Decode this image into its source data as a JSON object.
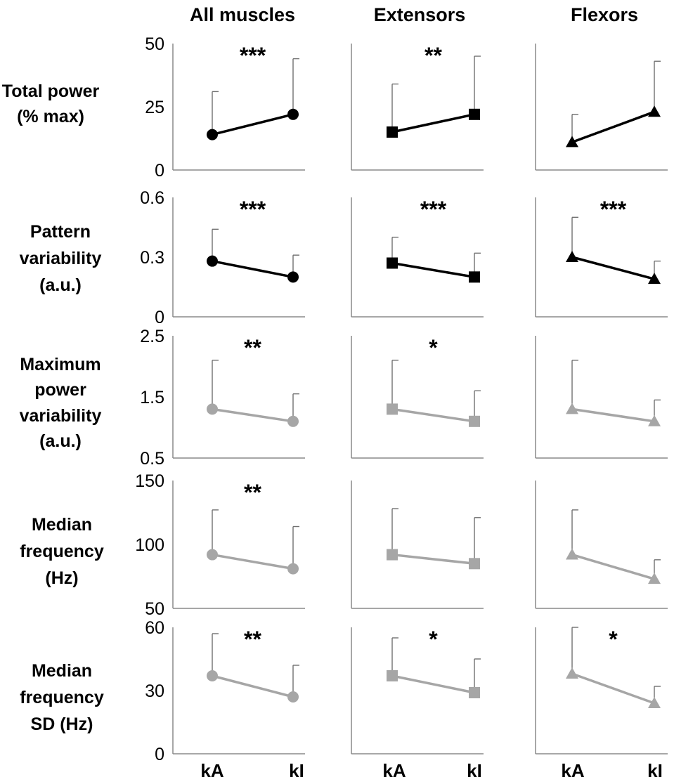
{
  "colors": {
    "dark": "#000000",
    "light": "#a6a6a6",
    "axis": "#8a8a8a",
    "errorbar": "#707070",
    "text": "#000000"
  },
  "figure": {
    "column_titles": [
      "All muscles",
      "Extensors",
      "Flexors"
    ],
    "x_categories": [
      "kA",
      "kI"
    ],
    "row_labels": [
      [
        "Total power",
        "(% max)"
      ],
      [
        "Pattern",
        "variability",
        "(a.u.)"
      ],
      [
        "Maximum",
        "power",
        "variability",
        "(a.u.)"
      ],
      [
        "Median",
        "frequency",
        "(Hz)"
      ],
      [
        "Median",
        "frequency",
        "SD (Hz)"
      ]
    ]
  },
  "chart_data": [
    {
      "type": "line",
      "row": 0,
      "col": 0,
      "group": "All muscles",
      "measure": "Total power (% max)",
      "categories": [
        "kA",
        "kI"
      ],
      "values": [
        14,
        22
      ],
      "error_upper": [
        31,
        44
      ],
      "ylim": [
        0,
        50
      ],
      "yticks": [
        "50",
        "25",
        "0"
      ],
      "significance": "***",
      "marker": "circle",
      "color": "dark"
    },
    {
      "type": "line",
      "row": 0,
      "col": 1,
      "group": "Extensors",
      "measure": "Total power (% max)",
      "categories": [
        "kA",
        "kI"
      ],
      "values": [
        15,
        22
      ],
      "error_upper": [
        34,
        45
      ],
      "ylim": [
        0,
        50
      ],
      "yticks": [],
      "significance": "**",
      "marker": "square",
      "color": "dark"
    },
    {
      "type": "line",
      "row": 0,
      "col": 2,
      "group": "Flexors",
      "measure": "Total power (% max)",
      "categories": [
        "kA",
        "kI"
      ],
      "values": [
        11,
        23
      ],
      "error_upper": [
        22,
        43
      ],
      "ylim": [
        0,
        50
      ],
      "yticks": [],
      "significance": "",
      "marker": "triangle",
      "color": "dark"
    },
    {
      "type": "line",
      "row": 1,
      "col": 0,
      "group": "All muscles",
      "measure": "Pattern variability (a.u.)",
      "categories": [
        "kA",
        "kI"
      ],
      "values": [
        0.28,
        0.2
      ],
      "error_upper": [
        0.44,
        0.31
      ],
      "ylim": [
        0,
        0.6
      ],
      "yticks": [
        "0.6",
        "0.3",
        "0"
      ],
      "significance": "***",
      "marker": "circle",
      "color": "dark"
    },
    {
      "type": "line",
      "row": 1,
      "col": 1,
      "group": "Extensors",
      "measure": "Pattern variability (a.u.)",
      "categories": [
        "kA",
        "kI"
      ],
      "values": [
        0.27,
        0.2
      ],
      "error_upper": [
        0.4,
        0.32
      ],
      "ylim": [
        0,
        0.6
      ],
      "yticks": [],
      "significance": "***",
      "marker": "square",
      "color": "dark"
    },
    {
      "type": "line",
      "row": 1,
      "col": 2,
      "group": "Flexors",
      "measure": "Pattern variability (a.u.)",
      "categories": [
        "kA",
        "kI"
      ],
      "values": [
        0.3,
        0.19
      ],
      "error_upper": [
        0.5,
        0.28
      ],
      "ylim": [
        0,
        0.6
      ],
      "yticks": [],
      "significance": "***",
      "marker": "triangle",
      "color": "dark"
    },
    {
      "type": "line",
      "row": 2,
      "col": 0,
      "group": "All muscles",
      "measure": "Maximum power variability (a.u.)",
      "categories": [
        "kA",
        "kI"
      ],
      "values": [
        1.3,
        1.1
      ],
      "error_upper": [
        2.1,
        1.55
      ],
      "ylim": [
        0.5,
        2.5
      ],
      "yticks": [
        "2.5",
        "1.5",
        "0.5"
      ],
      "significance": "**",
      "marker": "circle",
      "color": "light"
    },
    {
      "type": "line",
      "row": 2,
      "col": 1,
      "group": "Extensors",
      "measure": "Maximum power variability (a.u.)",
      "categories": [
        "kA",
        "kI"
      ],
      "values": [
        1.3,
        1.1
      ],
      "error_upper": [
        2.1,
        1.6
      ],
      "ylim": [
        0.5,
        2.5
      ],
      "yticks": [],
      "significance": "*",
      "marker": "square",
      "color": "light"
    },
    {
      "type": "line",
      "row": 2,
      "col": 2,
      "group": "Flexors",
      "measure": "Maximum power variability (a.u.)",
      "categories": [
        "kA",
        "kI"
      ],
      "values": [
        1.3,
        1.1
      ],
      "error_upper": [
        2.1,
        1.45
      ],
      "ylim": [
        0.5,
        2.5
      ],
      "yticks": [],
      "significance": "",
      "marker": "triangle",
      "color": "light"
    },
    {
      "type": "line",
      "row": 3,
      "col": 0,
      "group": "All muscles",
      "measure": "Median frequency (Hz)",
      "categories": [
        "kA",
        "kI"
      ],
      "values": [
        92,
        81
      ],
      "error_upper": [
        127,
        114
      ],
      "ylim": [
        50,
        150
      ],
      "yticks": [
        "150",
        "100",
        "50"
      ],
      "significance": "**",
      "marker": "circle",
      "color": "light"
    },
    {
      "type": "line",
      "row": 3,
      "col": 1,
      "group": "Extensors",
      "measure": "Median frequency (Hz)",
      "categories": [
        "kA",
        "kI"
      ],
      "values": [
        92,
        85
      ],
      "error_upper": [
        128,
        121
      ],
      "ylim": [
        50,
        150
      ],
      "yticks": [],
      "significance": "",
      "marker": "square",
      "color": "light"
    },
    {
      "type": "line",
      "row": 3,
      "col": 2,
      "group": "Flexors",
      "measure": "Median frequency (Hz)",
      "categories": [
        "kA",
        "kI"
      ],
      "values": [
        92,
        73
      ],
      "error_upper": [
        127,
        88
      ],
      "ylim": [
        50,
        150
      ],
      "yticks": [],
      "significance": "",
      "marker": "triangle",
      "color": "light"
    },
    {
      "type": "line",
      "row": 4,
      "col": 0,
      "group": "All muscles",
      "measure": "Median frequency SD (Hz)",
      "categories": [
        "kA",
        "kI"
      ],
      "values": [
        37,
        27
      ],
      "error_upper": [
        57,
        42
      ],
      "ylim": [
        0,
        60
      ],
      "yticks": [
        "60",
        "30",
        "0"
      ],
      "significance": "**",
      "marker": "circle",
      "color": "light"
    },
    {
      "type": "line",
      "row": 4,
      "col": 1,
      "group": "Extensors",
      "measure": "Median frequency SD (Hz)",
      "categories": [
        "kA",
        "kI"
      ],
      "values": [
        37,
        29
      ],
      "error_upper": [
        55,
        45
      ],
      "ylim": [
        0,
        60
      ],
      "yticks": [],
      "significance": "*",
      "marker": "square",
      "color": "light"
    },
    {
      "type": "line",
      "row": 4,
      "col": 2,
      "group": "Flexors",
      "measure": "Median frequency SD (Hz)",
      "categories": [
        "kA",
        "kI"
      ],
      "values": [
        38,
        24
      ],
      "error_upper": [
        60,
        32
      ],
      "ylim": [
        0,
        60
      ],
      "yticks": [],
      "significance": "*",
      "marker": "triangle",
      "color": "light"
    }
  ]
}
